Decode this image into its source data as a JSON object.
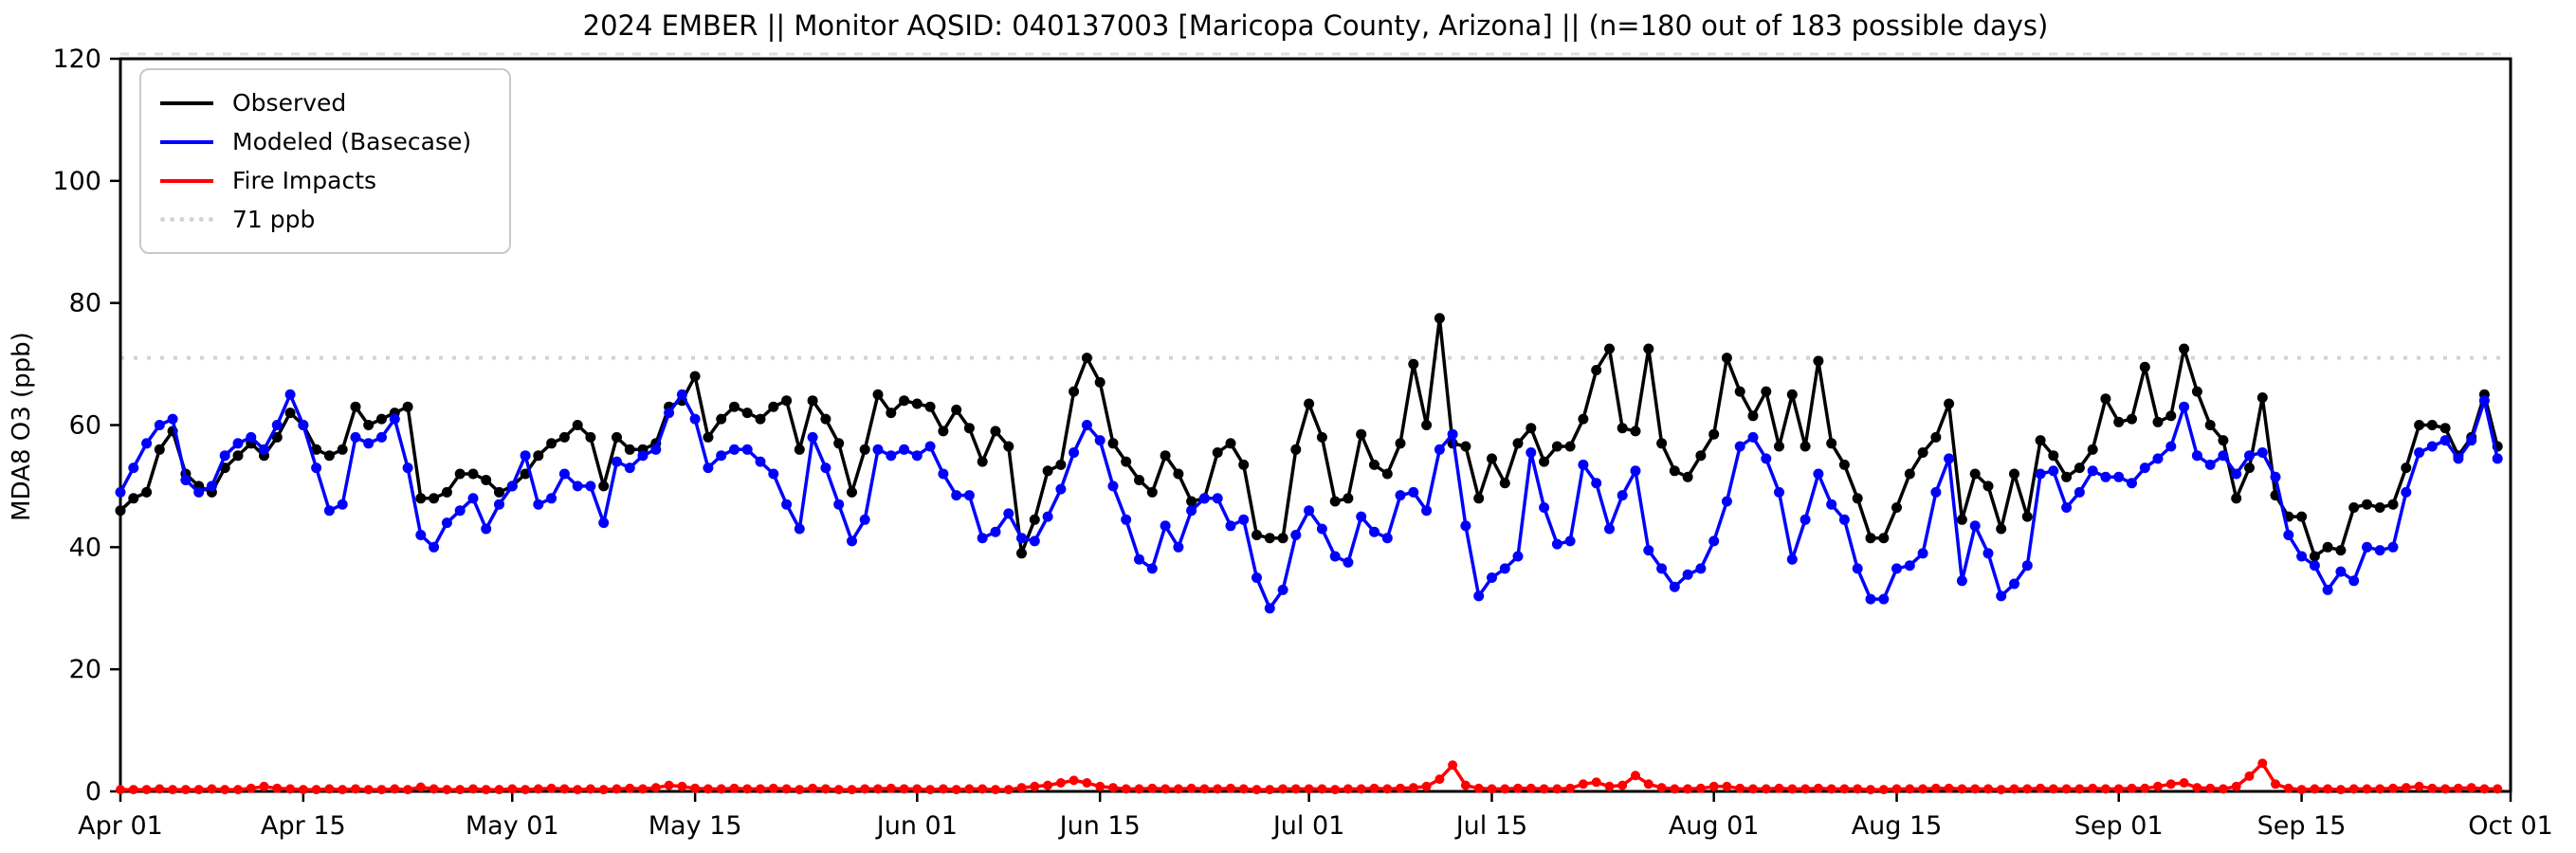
{
  "chart_data": {
    "type": "line",
    "title": "2024 EMBER || Monitor AQSID: 040137003 [Maricopa County, Arizona] || (n=180 out of 183 possible days)",
    "xlabel": "",
    "ylabel": "MDA8 O3 (ppb)",
    "ylim": [
      0,
      120
    ],
    "yticks": [
      0,
      20,
      40,
      60,
      80,
      100,
      120
    ],
    "x_range": "Apr 01 2024 to Oct 01 2024, daily values",
    "n_annotation": "n=180 out of 183 possible days",
    "grid": false,
    "legend_position": "upper left",
    "xticks": [
      {
        "day": 1,
        "label": "Apr 01"
      },
      {
        "day": 15,
        "label": "Apr 15"
      },
      {
        "day": 31,
        "label": "May 01"
      },
      {
        "day": 45,
        "label": "May 15"
      },
      {
        "day": 62,
        "label": "Jun 01"
      },
      {
        "day": 76,
        "label": "Jun 15"
      },
      {
        "day": 92,
        "label": "Jul 01"
      },
      {
        "day": 106,
        "label": "Jul 15"
      },
      {
        "day": 123,
        "label": "Aug 01"
      },
      {
        "day": 137,
        "label": "Aug 15"
      },
      {
        "day": 154,
        "label": "Sep 01"
      },
      {
        "day": 168,
        "label": "Sep 15"
      },
      {
        "day": 184,
        "label": "Oct 01"
      }
    ],
    "reference_line": {
      "label": "71 ppb",
      "value": 71,
      "style": "dotted",
      "color": "#d3d3d3"
    },
    "upper_dashed_line": {
      "value": 120,
      "style": "dashed",
      "color": "#dedede"
    },
    "series": [
      {
        "name": "Observed",
        "color": "#000000",
        "values": [
          46,
          48,
          49,
          56,
          59,
          52,
          50,
          49,
          53,
          55,
          57,
          55,
          58,
          62,
          60,
          56,
          55,
          56,
          63,
          60,
          61,
          62,
          63,
          48,
          48,
          49,
          52,
          52,
          51,
          49,
          50,
          52,
          55,
          57,
          58,
          60,
          58,
          50,
          58,
          56,
          56,
          57,
          63,
          64,
          68,
          58,
          61,
          63,
          62,
          61,
          63,
          64,
          56,
          64,
          61,
          57,
          49,
          56,
          65,
          62,
          64,
          63.5,
          63,
          59,
          62.5,
          59.5,
          54,
          59,
          56.5,
          39,
          44.5,
          52.5,
          53.5,
          65.5,
          71,
          67,
          57,
          54,
          51,
          49,
          55,
          52,
          47.5,
          48,
          55.5,
          57,
          53.5,
          42,
          41.5,
          41.5,
          56,
          63.5,
          58,
          47.5,
          48,
          58.5,
          53.5,
          52,
          57,
          70,
          60,
          77.5,
          57,
          56.5,
          48,
          54.5,
          50.5,
          57,
          59.5,
          54,
          56.5,
          56.5,
          61,
          69,
          72.5,
          59.5,
          59,
          72.5,
          57,
          52.5,
          51.5,
          55,
          58.5,
          71,
          65.5,
          61.5,
          65.5,
          56.5,
          65,
          56.5,
          70.5,
          57,
          53.5,
          48,
          41.5,
          41.5,
          46.5,
          52,
          55.5,
          58,
          63.5,
          44.5,
          52,
          50,
          43,
          52,
          45,
          57.5,
          55,
          51.5,
          53,
          56,
          64.3,
          60.5,
          61,
          69.5,
          60.5,
          61.5,
          72.5,
          65.5,
          60,
          57.5,
          48,
          53,
          64.5,
          48.5,
          45,
          45,
          38.5,
          40,
          39.5,
          46.5,
          47,
          46.5,
          47,
          53,
          60,
          60,
          59.5,
          55,
          58,
          65,
          56.5
        ]
      },
      {
        "name": "Modeled (Basecase)",
        "color": "#0000ff",
        "values": [
          49,
          53,
          57,
          60,
          61,
          51,
          49,
          50,
          55,
          57,
          58,
          56,
          60,
          65,
          60,
          53,
          46,
          47,
          58,
          57,
          58,
          61,
          53,
          42,
          40,
          44,
          46,
          48,
          43,
          47,
          50,
          55,
          47,
          48,
          52,
          50,
          50,
          44,
          54,
          53,
          55,
          56,
          62,
          65,
          61,
          53,
          55,
          56,
          56,
          54,
          52,
          47,
          43,
          58,
          53,
          47,
          41,
          44.5,
          56,
          55,
          56,
          55,
          56.5,
          52,
          48.5,
          48.5,
          41.5,
          42.5,
          45.5,
          41.5,
          41,
          45,
          49.5,
          55.5,
          60,
          57.5,
          50,
          44.5,
          38,
          36.5,
          43.5,
          40,
          46,
          48,
          48,
          43.5,
          44.5,
          35,
          30,
          33,
          42,
          46,
          43,
          38.5,
          37.5,
          45,
          42.5,
          41.5,
          48.5,
          49,
          46,
          56,
          58.5,
          43.5,
          32,
          35,
          36.5,
          38.5,
          55.5,
          46.5,
          40.5,
          41,
          53.5,
          50.5,
          43,
          48.5,
          52.5,
          39.5,
          36.5,
          33.5,
          35.5,
          36.5,
          41,
          47.5,
          56.5,
          58,
          54.5,
          49,
          38,
          44.5,
          52,
          47,
          44.5,
          36.5,
          31.5,
          31.5,
          36.5,
          37,
          39,
          49,
          54.5,
          34.5,
          43.5,
          39,
          32,
          34,
          37,
          52,
          52.5,
          46.5,
          49,
          52.5,
          51.5,
          51.5,
          50.5,
          53,
          54.5,
          56.5,
          63,
          55,
          53.5,
          55,
          52,
          55,
          55.5,
          51.5,
          42,
          38.5,
          37,
          33,
          36,
          34.5,
          40,
          39.5,
          40,
          49,
          55.5,
          56.5,
          57.5,
          54.5,
          57.5,
          64,
          54.5
        ]
      },
      {
        "name": "Fire Impacts",
        "color": "#ff0000",
        "values": [
          0.3,
          0.3,
          0.3,
          0.4,
          0.3,
          0.3,
          0.3,
          0.4,
          0.3,
          0.3,
          0.5,
          0.8,
          0.5,
          0.4,
          0.3,
          0.3,
          0.4,
          0.3,
          0.4,
          0.3,
          0.3,
          0.4,
          0.3,
          0.7,
          0.4,
          0.3,
          0.3,
          0.4,
          0.3,
          0.3,
          0.4,
          0.3,
          0.4,
          0.5,
          0.4,
          0.3,
          0.4,
          0.3,
          0.4,
          0.5,
          0.4,
          0.6,
          1.0,
          0.8,
          0.5,
          0.4,
          0.4,
          0.5,
          0.4,
          0.4,
          0.5,
          0.4,
          0.3,
          0.5,
          0.4,
          0.3,
          0.3,
          0.4,
          0.4,
          0.5,
          0.4,
          0.4,
          0.3,
          0.4,
          0.3,
          0.4,
          0.4,
          0.3,
          0.3,
          0.6,
          0.8,
          1.0,
          1.4,
          1.8,
          1.4,
          0.8,
          0.6,
          0.4,
          0.4,
          0.5,
          0.4,
          0.4,
          0.5,
          0.4,
          0.4,
          0.5,
          0.4,
          0.3,
          0.3,
          0.4,
          0.4,
          0.4,
          0.4,
          0.3,
          0.4,
          0.4,
          0.5,
          0.4,
          0.5,
          0.6,
          0.8,
          2.0,
          4.3,
          1.0,
          0.5,
          0.4,
          0.4,
          0.5,
          0.5,
          0.4,
          0.4,
          0.5,
          1.2,
          1.5,
          0.8,
          1.0,
          2.6,
          1.2,
          0.6,
          0.4,
          0.4,
          0.5,
          0.8,
          0.8,
          0.5,
          0.4,
          0.4,
          0.5,
          0.4,
          0.4,
          0.5,
          0.4,
          0.4,
          0.4,
          0.3,
          0.3,
          0.4,
          0.4,
          0.4,
          0.5,
          0.5,
          0.4,
          0.4,
          0.4,
          0.3,
          0.4,
          0.4,
          0.5,
          0.4,
          0.4,
          0.4,
          0.5,
          0.4,
          0.4,
          0.5,
          0.5,
          0.8,
          1.2,
          1.4,
          0.6,
          0.5,
          0.4,
          0.8,
          2.5,
          4.6,
          1.2,
          0.5,
          0.3,
          0.4,
          0.4,
          0.3,
          0.4,
          0.4,
          0.4,
          0.5,
          0.6,
          0.8,
          0.5,
          0.4,
          0.5,
          0.6,
          0.4,
          0.4
        ]
      }
    ]
  },
  "legend": {
    "items": [
      {
        "label": "Observed",
        "color": "#000000",
        "style": "solid"
      },
      {
        "label": "Modeled (Basecase)",
        "color": "#0000ff",
        "style": "solid"
      },
      {
        "label": "Fire Impacts",
        "color": "#ff0000",
        "style": "solid"
      },
      {
        "label": "71 ppb",
        "color": "#d3d3d3",
        "style": "dotted"
      }
    ]
  },
  "colors": {
    "observed": "#000000",
    "modeled": "#0000ff",
    "fire": "#ff0000",
    "reference": "#d3d3d3",
    "axis": "#000000",
    "background": "#ffffff"
  }
}
